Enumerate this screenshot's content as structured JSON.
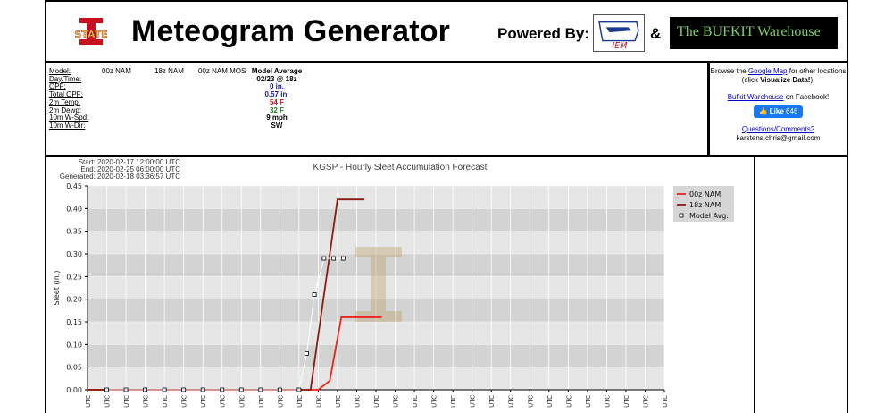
{
  "header": {
    "title": "Meteogram Generator",
    "powered_by": "Powered By:",
    "amp": "&",
    "iem_logo_text": "IEM",
    "bufkit_logo_text": "The BUFKIT Warehouse",
    "isu_logo_text": "STATE"
  },
  "info": {
    "rows": [
      {
        "label": "Model:",
        "c1": "00z NAM",
        "c2": "18z NAM",
        "c3": "00z NAM MOS",
        "avg": "Model Average",
        "avg_color": "#000000"
      },
      {
        "label": "Day/Time:",
        "c1": "",
        "c2": "",
        "c3": "",
        "avg": "02/23 @ 18z",
        "avg_color": "#000000"
      },
      {
        "label": "QPF:",
        "c1": "",
        "c2": "",
        "c3": "",
        "avg": "0 in.",
        "avg_color": "#1a1a9e"
      },
      {
        "label": "Total QPF:",
        "c1": "",
        "c2": "",
        "c3": "",
        "avg": "0.57 in.",
        "avg_color": "#1a1a9e"
      },
      {
        "label": "2m Temp:",
        "c1": "",
        "c2": "",
        "c3": "",
        "avg": "54 F",
        "avg_color": "#c8101e"
      },
      {
        "label": "2m Dewp:",
        "c1": "",
        "c2": "",
        "c3": "",
        "avg": "32 F",
        "avg_color": "#1f7a1f"
      },
      {
        "label": "10m W-Spd:",
        "c1": "",
        "c2": "",
        "c3": "",
        "avg": "9 mph",
        "avg_color": "#000000"
      },
      {
        "label": "10m W-Dir:",
        "c1": "",
        "c2": "",
        "c3": "",
        "avg": "SW",
        "avg_color": "#000000"
      }
    ]
  },
  "side": {
    "browse_prefix": "Browse the ",
    "google_map": "Google Map",
    "browse_suffix": " for other locations",
    "click_prefix": "(click ",
    "visualize": "Visualize Data!",
    "click_suffix": ").",
    "bufkit_link": "Bufkit Warehouse",
    "facebook_suffix": " on Facebook!",
    "like_label": "Like",
    "like_count": "646",
    "questions": "Questions/Comments?",
    "email": "karstens.chris@gmail.com"
  },
  "chart_meta": {
    "start": "Start: 2020-02-17 12:00:00 UTC",
    "end": "End: 2020-02-25 06:00:00 UTC",
    "generated": "Generated: 2020-02-18 03:36:57 UTC"
  },
  "chart_data": {
    "type": "line",
    "title": "KGSP - Hourly Sleet Accumulation Forecast",
    "ylabel": "Sleet (in.)",
    "xlabel": "",
    "ylim": [
      0,
      0.45
    ],
    "yticks": [
      0.0,
      0.05,
      0.1,
      0.15,
      0.2,
      0.25,
      0.3,
      0.35,
      0.4,
      0.45
    ],
    "xtick_label": "UTC",
    "n_ticks": 31,
    "grid": true,
    "legend_position": "top-right",
    "colors": {
      "nam00": "#e8251c",
      "nam18": "#8b1a10",
      "avg": "#ffffff"
    },
    "series": [
      {
        "name": "00z NAM",
        "style": "line",
        "x": [
          0,
          12,
          12.6,
          13.2,
          15.3
        ],
        "y": [
          0,
          0,
          0.02,
          0.16,
          0.16
        ]
      },
      {
        "name": "18z NAM",
        "style": "line",
        "x": [
          0,
          11.6,
          13.0,
          14.4
        ],
        "y": [
          0,
          0,
          0.42,
          0.42
        ]
      },
      {
        "name": "Model Avg.",
        "style": "marker",
        "x": [
          1,
          2,
          3,
          4,
          5,
          6,
          7,
          8,
          9,
          10,
          11,
          11.4,
          11.8,
          12.3,
          12.8,
          13.3
        ],
        "y": [
          0,
          0,
          0,
          0,
          0,
          0,
          0,
          0,
          0,
          0,
          0,
          0.08,
          0.21,
          0.29,
          0.29,
          0.29
        ]
      }
    ]
  }
}
